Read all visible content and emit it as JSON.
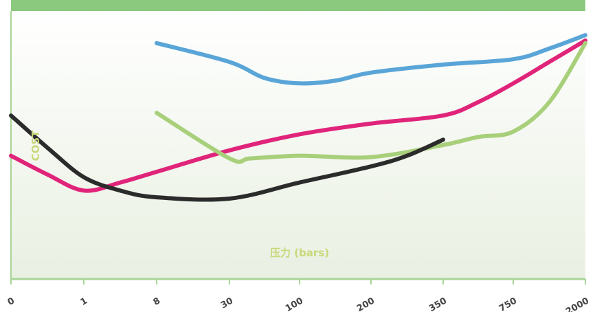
{
  "colors": {
    "header_band": "#8bc97e",
    "axis_line": "#a8d598",
    "title_text": "#c8d87a",
    "bg_top": "#ffffff",
    "bg_bottom": "#e9f0e2"
  },
  "chart_data": {
    "type": "line",
    "categories": [
      "0",
      "1",
      "8",
      "30",
      "100",
      "200",
      "350",
      "750",
      "2000"
    ],
    "xlabel": "压力 (bars)",
    "ylabel": "COST",
    "ylim": [
      0,
      10
    ],
    "grid": false,
    "legend": "none",
    "series": [
      {
        "color": "#5aa5d8",
        "points": [
          [
            2,
            8.8
          ],
          [
            3,
            8.1
          ],
          [
            3.5,
            7.5
          ],
          [
            4,
            7.3
          ],
          [
            4.5,
            7.4
          ],
          [
            5,
            7.7
          ],
          [
            6,
            8.0
          ],
          [
            7,
            8.2
          ],
          [
            7.5,
            8.6
          ],
          [
            8,
            9.1
          ]
        ]
      },
      {
        "color": "#e0247a",
        "points": [
          [
            0,
            4.6
          ],
          [
            0.5,
            3.9
          ],
          [
            1,
            3.3
          ],
          [
            1.5,
            3.6
          ],
          [
            2,
            4.0
          ],
          [
            3,
            4.8
          ],
          [
            4,
            5.4
          ],
          [
            5,
            5.8
          ],
          [
            6,
            6.1
          ],
          [
            6.5,
            6.6
          ],
          [
            7,
            7.3
          ],
          [
            7.5,
            8.1
          ],
          [
            8,
            8.9
          ]
        ]
      },
      {
        "color": "#a8cf7a",
        "points": [
          [
            2,
            6.2
          ],
          [
            3,
            4.5
          ],
          [
            3.3,
            4.5
          ],
          [
            4,
            4.6
          ],
          [
            5,
            4.55
          ],
          [
            6,
            5.0
          ],
          [
            6.5,
            5.3
          ],
          [
            7,
            5.5
          ],
          [
            7.5,
            6.6
          ],
          [
            8,
            8.8
          ]
        ]
      },
      {
        "color": "#2b2b2b",
        "points": [
          [
            0,
            6.1
          ],
          [
            0.5,
            4.9
          ],
          [
            1,
            3.8
          ],
          [
            1.5,
            3.3
          ],
          [
            2,
            3.05
          ],
          [
            3,
            3.0
          ],
          [
            4,
            3.6
          ],
          [
            5,
            4.2
          ],
          [
            5.5,
            4.6
          ],
          [
            6,
            5.2
          ]
        ]
      }
    ]
  }
}
